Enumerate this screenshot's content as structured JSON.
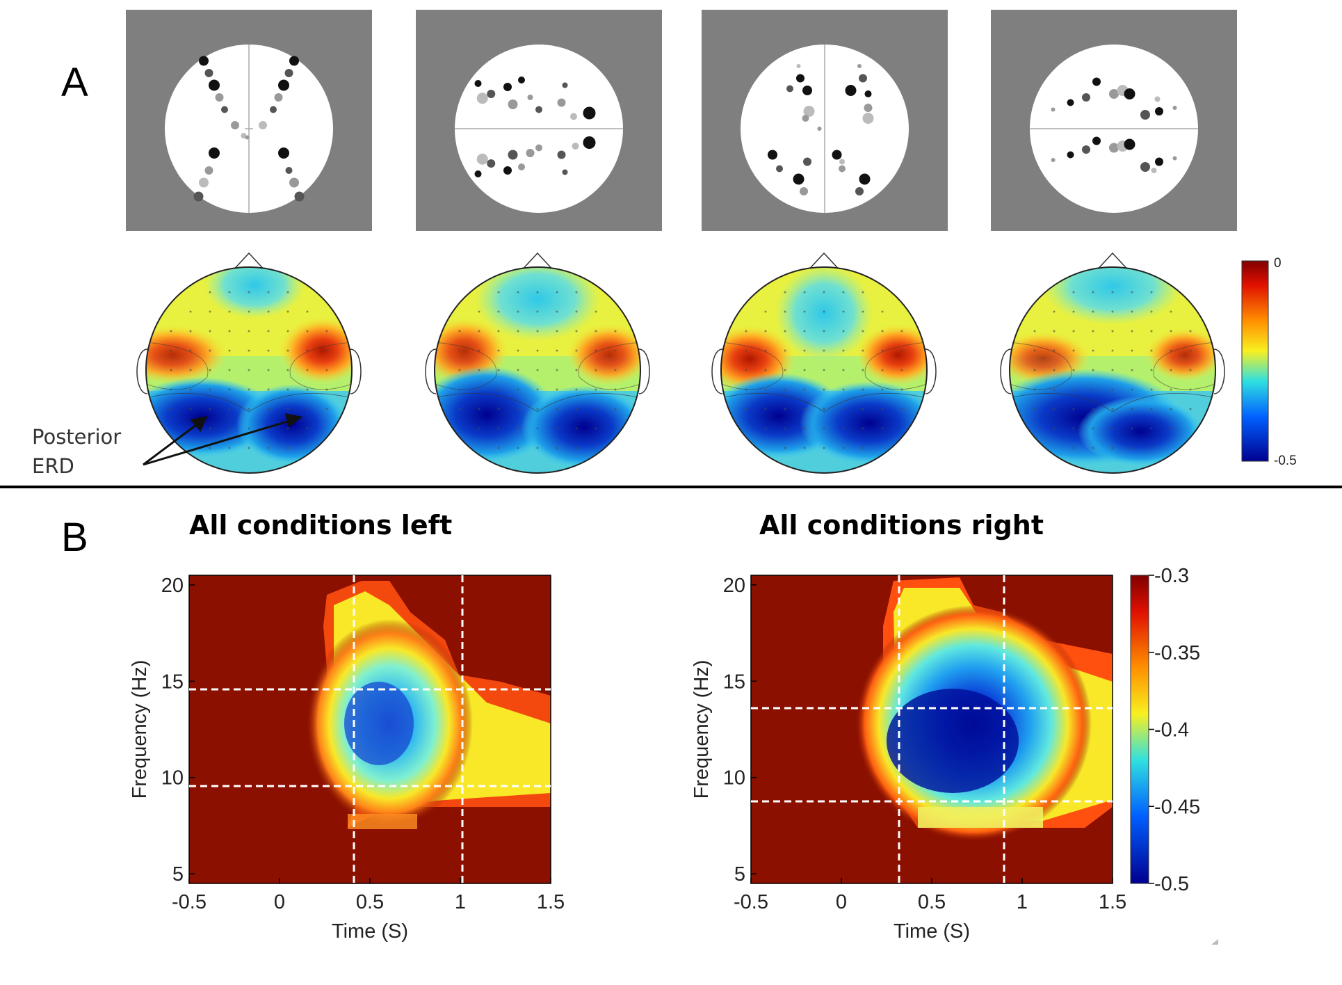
{
  "panel_a": {
    "label": "A",
    "annotation_line1": "Posterior",
    "annotation_line2": "ERD",
    "colorbar": {
      "max_label": "0",
      "min_label": "-0.5",
      "range": [
        -0.5,
        0
      ]
    },
    "layouts": [
      {
        "name": "x-pattern",
        "dot_color": "#000000"
      },
      {
        "name": "horizontal-split",
        "dot_color": "#000000"
      },
      {
        "name": "vertical-split",
        "dot_color": "#000000"
      },
      {
        "name": "horizontal-split-2",
        "dot_color": "#000000"
      }
    ],
    "panel_bg": "#7f7f7f"
  },
  "panel_b": {
    "label": "B",
    "colorbar": {
      "tick_labels": [
        "-0.3",
        "-0.35",
        "-0.4",
        "-0.45",
        "-0.5"
      ],
      "range": [
        -0.5,
        -0.3
      ]
    },
    "colors": {
      "background": "#8b1000",
      "dashed_lines": "#ffffff"
    }
  },
  "chart_data": [
    {
      "type": "heatmap",
      "title": "All conditions left",
      "xlabel": "Time (S)",
      "ylabel": "Frequency (Hz)",
      "xlim": [
        -0.5,
        1.5
      ],
      "ylim": [
        4.5,
        20.5
      ],
      "x_ticks": [
        "-0.5",
        "0",
        "0.5",
        "1",
        "1.5"
      ],
      "y_ticks": [
        "5",
        "10",
        "15",
        "20"
      ],
      "value_range": [
        -0.5,
        -0.3
      ],
      "dashed_time_lines": [
        0.42,
        1.02
      ],
      "dashed_freq_lines": [
        9.5,
        14.5
      ],
      "min_region": {
        "time": 0.6,
        "freq": 13,
        "value": -0.46
      }
    },
    {
      "type": "heatmap",
      "title": "All conditions right",
      "xlabel": "Time (S)",
      "ylabel": "Frequency (Hz)",
      "xlim": [
        -0.5,
        1.5
      ],
      "ylim": [
        4.5,
        20.5
      ],
      "x_ticks": [
        "-0.5",
        "0",
        "0.5",
        "1",
        "1.5"
      ],
      "y_ticks": [
        "5",
        "10",
        "15",
        "20"
      ],
      "value_range": [
        -0.5,
        -0.3
      ],
      "dashed_time_lines": [
        0.33,
        0.92
      ],
      "dashed_freq_lines": [
        9,
        13.7
      ],
      "min_region": {
        "time": 0.6,
        "freq": 11,
        "value": -0.5
      }
    }
  ]
}
